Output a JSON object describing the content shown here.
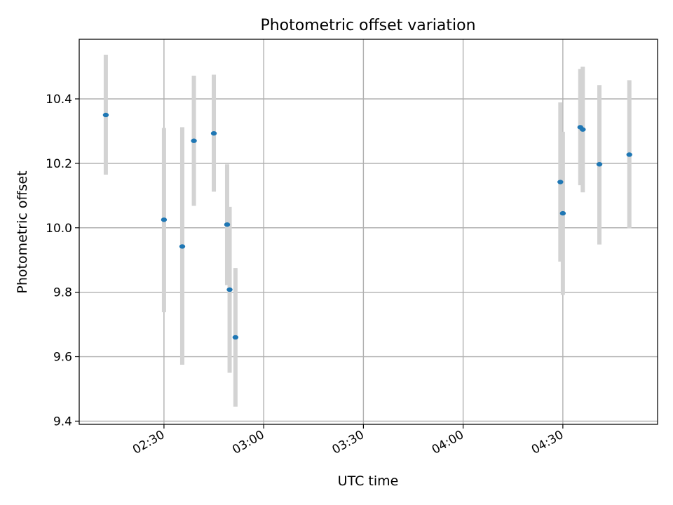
{
  "chart_data": {
    "type": "scatter",
    "title": "Photometric offset variation",
    "xlabel": "UTC time",
    "ylabel": "Photometric offset",
    "x_type": "time",
    "xlim": [
      "02:04:30",
      "04:58:30"
    ],
    "ylim": [
      9.39,
      10.585
    ],
    "x_ticks": [
      "02:30",
      "03:00",
      "03:30",
      "04:00",
      "04:30"
    ],
    "y_ticks": [
      "9.4",
      "9.6",
      "9.8",
      "10.0",
      "10.2",
      "10.4"
    ],
    "grid": true,
    "colors": {
      "point": "#1f77b4",
      "errorbar": "#d3d3d3",
      "grid": "#b0b0b0"
    },
    "points": [
      {
        "x": "02:12:30",
        "y": 10.35,
        "y_low": 10.165,
        "y_high": 10.537
      },
      {
        "x": "02:30:00",
        "y": 10.025,
        "y_low": 9.738,
        "y_high": 10.31
      },
      {
        "x": "02:35:30",
        "y": 9.942,
        "y_low": 9.575,
        "y_high": 10.312
      },
      {
        "x": "02:39:00",
        "y": 10.27,
        "y_low": 10.068,
        "y_high": 10.472
      },
      {
        "x": "02:45:00",
        "y": 10.293,
        "y_low": 10.112,
        "y_high": 10.475
      },
      {
        "x": "02:49:00",
        "y": 10.01,
        "y_low": 9.822,
        "y_high": 10.197
      },
      {
        "x": "02:49:45",
        "y": 9.808,
        "y_low": 9.55,
        "y_high": 10.065
      },
      {
        "x": "02:51:30",
        "y": 9.66,
        "y_low": 9.445,
        "y_high": 9.875
      },
      {
        "x": "04:29:15",
        "y": 10.142,
        "y_low": 9.895,
        "y_high": 10.389
      },
      {
        "x": "04:30:00",
        "y": 10.045,
        "y_low": 9.792,
        "y_high": 10.298
      },
      {
        "x": "04:35:15",
        "y": 10.312,
        "y_low": 10.132,
        "y_high": 10.493
      },
      {
        "x": "04:36:00",
        "y": 10.305,
        "y_low": 10.11,
        "y_high": 10.5
      },
      {
        "x": "04:41:00",
        "y": 10.197,
        "y_low": 9.948,
        "y_high": 10.443
      },
      {
        "x": "04:50:00",
        "y": 10.227,
        "y_low": 9.998,
        "y_high": 10.458
      }
    ]
  }
}
